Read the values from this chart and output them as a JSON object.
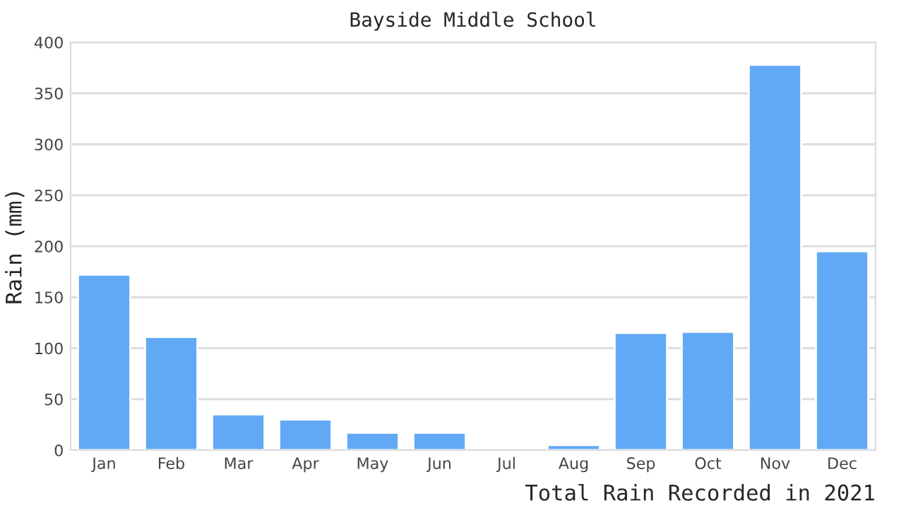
{
  "chart_data": {
    "type": "bar",
    "title": "Bayside Middle School",
    "xlabel": "Total Rain Recorded in 2021",
    "ylabel": "Rain (mm)",
    "categories": [
      "Jan",
      "Feb",
      "Mar",
      "Apr",
      "May",
      "Jun",
      "Jul",
      "Aug",
      "Sep",
      "Oct",
      "Nov",
      "Dec"
    ],
    "values": [
      172,
      111,
      35,
      30,
      17,
      17,
      null,
      5,
      115,
      116,
      378,
      195
    ],
    "color": "#62a9f5",
    "ylim": [
      0,
      400
    ],
    "yticks": [
      0,
      50,
      100,
      150,
      200,
      250,
      300,
      350,
      400
    ],
    "grid": "y",
    "legend": false
  }
}
